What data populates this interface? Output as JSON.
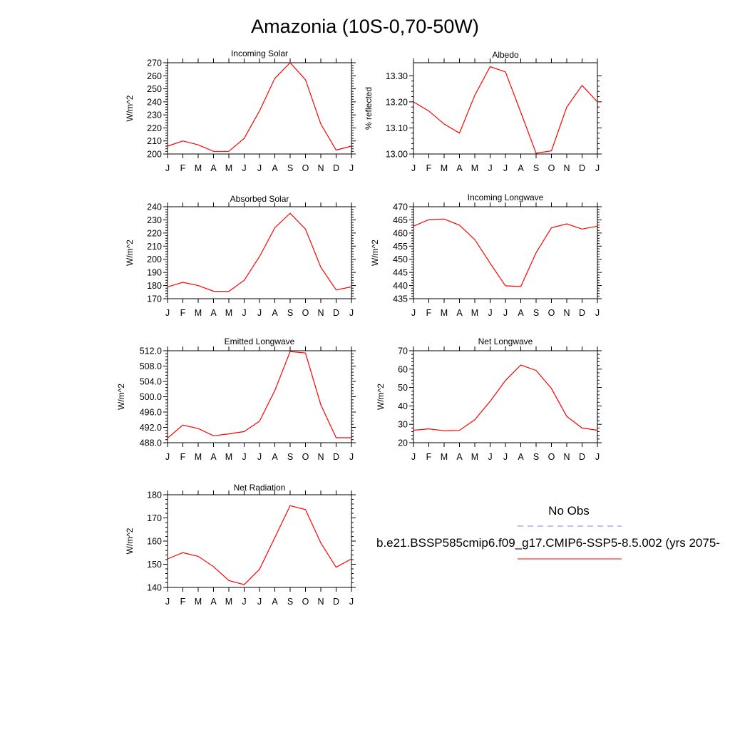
{
  "page": {
    "title": "Amazonia (10S-0,70-50W)"
  },
  "legend": {
    "obs_label": "No Obs",
    "obs_color": "#8080e0",
    "model_label": "b.e21.BSSP585cmip6.f09_g17.CMIP6-SSP5-8.5.002 (yrs 2075-",
    "model_color": "#ff0000"
  },
  "chart_data": [
    {
      "type": "line",
      "title": "Incoming Solar",
      "ylabel": "W/m^2",
      "x": [
        "J",
        "F",
        "M",
        "A",
        "M",
        "J",
        "J",
        "A",
        "S",
        "O",
        "N",
        "D",
        "J"
      ],
      "ylim": [
        200,
        270
      ],
      "yticks": [
        200,
        210,
        220,
        230,
        240,
        250,
        260,
        270
      ],
      "ytick_labels": [
        "200",
        "210",
        "220",
        "230",
        "240",
        "250",
        "260",
        "270"
      ],
      "series": [
        {
          "color": "#ff0000",
          "values": [
            206,
            210,
            207,
            202,
            202,
            212,
            233,
            258,
            270,
            257,
            223,
            203,
            206
          ]
        }
      ]
    },
    {
      "type": "line",
      "title": "Albedo",
      "ylabel": "% reflected",
      "x": [
        "J",
        "F",
        "M",
        "A",
        "M",
        "J",
        "J",
        "A",
        "S",
        "O",
        "N",
        "D",
        "J"
      ],
      "ylim": [
        13.0,
        13.35
      ],
      "yticks": [
        13.0,
        13.1,
        13.2,
        13.3
      ],
      "ytick_labels": [
        "13.00",
        "13.10",
        "13.20",
        "13.30"
      ],
      "series": [
        {
          "color": "#ff0000",
          "values": [
            13.2,
            13.165,
            13.115,
            13.08,
            13.225,
            13.335,
            13.315,
            13.16,
            13.003,
            13.012,
            13.18,
            13.263,
            13.2
          ]
        }
      ]
    },
    {
      "type": "line",
      "title": "Absorbed Solar",
      "ylabel": "W/m^2",
      "x": [
        "J",
        "F",
        "M",
        "A",
        "M",
        "J",
        "J",
        "A",
        "S",
        "O",
        "N",
        "D",
        "J"
      ],
      "ylim": [
        170,
        240
      ],
      "yticks": [
        170,
        180,
        190,
        200,
        210,
        220,
        230,
        240
      ],
      "ytick_labels": [
        "170",
        "180",
        "190",
        "200",
        "210",
        "220",
        "230",
        "240"
      ],
      "series": [
        {
          "color": "#ff0000",
          "values": [
            179,
            182.5,
            180,
            175.7,
            175.5,
            184,
            202,
            224,
            235,
            223,
            194,
            176.7,
            179
          ]
        }
      ]
    },
    {
      "type": "line",
      "title": "Incoming Longwave",
      "ylabel": "W/m^2",
      "x": [
        "J",
        "F",
        "M",
        "A",
        "M",
        "J",
        "J",
        "A",
        "S",
        "O",
        "N",
        "D",
        "J"
      ],
      "ylim": [
        435,
        470
      ],
      "yticks": [
        435,
        440,
        445,
        450,
        455,
        460,
        465,
        470
      ],
      "ytick_labels": [
        "435",
        "440",
        "445",
        "450",
        "455",
        "460",
        "465",
        "470"
      ],
      "series": [
        {
          "color": "#ff0000",
          "values": [
            462.6,
            465.1,
            465.3,
            463,
            457.5,
            448.5,
            439.9,
            439.6,
            452.5,
            462,
            463.5,
            461.5,
            462.6
          ]
        }
      ]
    },
    {
      "type": "line",
      "title": "Emitted Longwave",
      "ylabel": "W/m^2",
      "x": [
        "J",
        "F",
        "M",
        "A",
        "M",
        "J",
        "J",
        "A",
        "S",
        "O",
        "N",
        "D",
        "J"
      ],
      "ylim": [
        488,
        512
      ],
      "yticks": [
        488,
        492,
        496,
        500,
        504,
        508,
        512
      ],
      "ytick_labels": [
        "488.0",
        "492.0",
        "496.0",
        "500.0",
        "504.0",
        "508.0",
        "512.0"
      ],
      "series": [
        {
          "color": "#ff0000",
          "values": [
            489.2,
            492.6,
            491.7,
            489.8,
            490.3,
            490.9,
            493.6,
            501.6,
            511.8,
            511.4,
            497.9,
            489.3,
            489.3
          ]
        }
      ]
    },
    {
      "type": "line",
      "title": "Net Longwave",
      "ylabel": "W/m^2",
      "x": [
        "J",
        "F",
        "M",
        "A",
        "M",
        "J",
        "J",
        "A",
        "S",
        "O",
        "N",
        "D",
        "J"
      ],
      "ylim": [
        20,
        70
      ],
      "yticks": [
        20,
        30,
        40,
        50,
        60,
        70
      ],
      "ytick_labels": [
        "20",
        "30",
        "40",
        "50",
        "60",
        "70"
      ],
      "series": [
        {
          "color": "#ff0000",
          "values": [
            26.8,
            27.5,
            26.5,
            26.7,
            32.5,
            42.5,
            53.8,
            62.2,
            59.3,
            49.5,
            34.3,
            28,
            26.8
          ]
        }
      ]
    },
    {
      "type": "line",
      "title": "Net Radiation",
      "ylabel": "W/m^2",
      "x": [
        "J",
        "F",
        "M",
        "A",
        "M",
        "J",
        "J",
        "A",
        "S",
        "O",
        "N",
        "D",
        "J"
      ],
      "ylim": [
        140,
        180
      ],
      "yticks": [
        140,
        150,
        160,
        170,
        180
      ],
      "ytick_labels": [
        "140",
        "150",
        "160",
        "170",
        "180"
      ],
      "series": [
        {
          "color": "#ff0000",
          "values": [
            152.3,
            155,
            153.4,
            149,
            143,
            141.2,
            147.8,
            161.5,
            175.3,
            173.6,
            159.2,
            148.7,
            152.3
          ]
        }
      ]
    }
  ]
}
